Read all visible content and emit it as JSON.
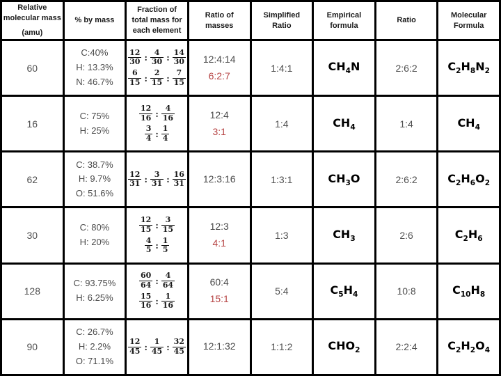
{
  "page": {
    "background_color": "#ffffff",
    "border_color": "#000000",
    "accent_red": "#b64343"
  },
  "table": {
    "headers": [
      [
        "Relative",
        "molecular mass",
        "(amu)"
      ],
      [
        "% by mass"
      ],
      [
        "Fraction of",
        "total mass for",
        "each element"
      ],
      [
        "Ratio of",
        "masses"
      ],
      [
        "Simplified",
        "Ratio"
      ],
      [
        "Empirical",
        "formula"
      ],
      [
        "Ratio"
      ],
      [
        "Molecular",
        "Formula"
      ]
    ],
    "rows": [
      {
        "relative_molecular_mass": "60",
        "percent_by_mass": [
          "C:40%",
          "H: 13.3%",
          "N: 46.7%"
        ],
        "fraction_lines": [
          [
            {
              "num": "12",
              "den": "30"
            },
            {
              "num": "4",
              "den": "30"
            },
            {
              "num": "14",
              "den": "30"
            }
          ],
          [
            {
              "num": "6",
              "den": "15"
            },
            {
              "num": "2",
              "den": "15"
            },
            {
              "num": "7",
              "den": "15"
            }
          ]
        ],
        "ratio_of_masses": "12:4:14",
        "ratio_of_masses_reduced": "6:2:7",
        "simplified_ratio": "1:4:1",
        "empirical_formula": "CH_4N",
        "ratio": "2:6:2",
        "molecular_formula": "C_2H_8N_2"
      },
      {
        "relative_molecular_mass": "16",
        "percent_by_mass": [
          "C: 75%",
          "H: 25%"
        ],
        "fraction_lines": [
          [
            {
              "num": "12",
              "den": "16"
            },
            {
              "num": "4",
              "den": "16"
            }
          ],
          [
            {
              "num": "3",
              "den": "4"
            },
            {
              "num": "1",
              "den": "4"
            }
          ]
        ],
        "ratio_of_masses": "12:4",
        "ratio_of_masses_reduced": "3:1",
        "simplified_ratio": "1:4",
        "empirical_formula": "CH_4",
        "ratio": "1:4",
        "molecular_formula": "CH_4"
      },
      {
        "relative_molecular_mass": "62",
        "percent_by_mass": [
          "C: 38.7%",
          "H: 9.7%",
          "O: 51.6%"
        ],
        "fraction_lines": [
          [
            {
              "num": "12",
              "den": "31"
            },
            {
              "num": "3",
              "den": "31"
            },
            {
              "num": "16",
              "den": "31"
            }
          ]
        ],
        "ratio_of_masses": "12:3:16",
        "ratio_of_masses_reduced": null,
        "simplified_ratio": "1:3:1",
        "empirical_formula": "CH_3O",
        "ratio": "2:6:2",
        "molecular_formula": "C_2H_6O_2"
      },
      {
        "relative_molecular_mass": "30",
        "percent_by_mass": [
          "C: 80%",
          "H: 20%"
        ],
        "fraction_lines": [
          [
            {
              "num": "12",
              "den": "15"
            },
            {
              "num": "3",
              "den": "15"
            }
          ],
          [
            {
              "num": "4",
              "den": "5"
            },
            {
              "num": "1",
              "den": "5"
            }
          ]
        ],
        "ratio_of_masses": "12:3",
        "ratio_of_masses_reduced": "4:1",
        "simplified_ratio": "1:3",
        "empirical_formula": "CH_3",
        "ratio": "2:6",
        "molecular_formula": "C_2H_6"
      },
      {
        "relative_molecular_mass": "128",
        "percent_by_mass": [
          "C: 93.75%",
          "H: 6.25%"
        ],
        "fraction_lines": [
          [
            {
              "num": "60",
              "den": "64"
            },
            {
              "num": "4",
              "den": "64"
            }
          ],
          [
            {
              "num": "15",
              "den": "16"
            },
            {
              "num": "1",
              "den": "16"
            }
          ]
        ],
        "ratio_of_masses": "60:4",
        "ratio_of_masses_reduced": "15:1",
        "simplified_ratio": "5:4",
        "empirical_formula": "C_5H_4",
        "ratio": "10:8",
        "molecular_formula": "C_10H_8"
      },
      {
        "relative_molecular_mass": "90",
        "percent_by_mass": [
          "C: 26.7%",
          "H: 2.2%",
          "O: 71.1%"
        ],
        "fraction_lines": [
          [
            {
              "num": "12",
              "den": "45"
            },
            {
              "num": "1",
              "den": "45"
            },
            {
              "num": "32",
              "den": "45"
            }
          ]
        ],
        "ratio_of_masses": "12:1:32",
        "ratio_of_masses_reduced": null,
        "simplified_ratio": "1:1:2",
        "empirical_formula": "CHO_2",
        "ratio": "2:2:4",
        "molecular_formula": "C_2H_2O_4"
      }
    ]
  }
}
